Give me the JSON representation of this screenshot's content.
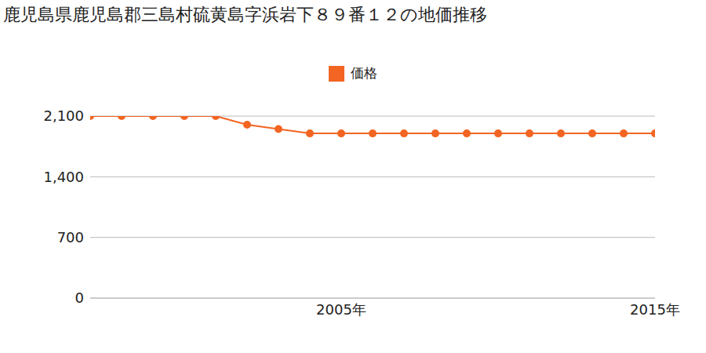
{
  "chart_data": {
    "type": "line",
    "title": "鹿児島県鹿児島郡三島村硫黄島字浜岩下８９番１２の地価推移",
    "x": [
      1997,
      1998,
      1999,
      2000,
      2001,
      2002,
      2003,
      2004,
      2005,
      2006,
      2007,
      2008,
      2009,
      2010,
      2011,
      2012,
      2013,
      2014,
      2015
    ],
    "series": [
      {
        "name": "価格",
        "color": "#f26522",
        "marker": "circle",
        "values": [
          2100,
          2100,
          2100,
          2100,
          2100,
          2000,
          1950,
          1900,
          1900,
          1900,
          1900,
          1900,
          1900,
          1900,
          1900,
          1900,
          1900,
          1900,
          1900
        ]
      }
    ],
    "xlim": [
      1997,
      2015
    ],
    "xticks": [
      {
        "value": 2005,
        "label": "2005年"
      },
      {
        "value": 2015,
        "label": "2015年"
      }
    ],
    "ylim": [
      0,
      2100
    ],
    "yticks": [
      0,
      700,
      {
        "value": 1400,
        "label": "1,400"
      },
      {
        "value": 2100,
        "label": "2,100"
      }
    ],
    "grid": true,
    "legend": "top"
  }
}
